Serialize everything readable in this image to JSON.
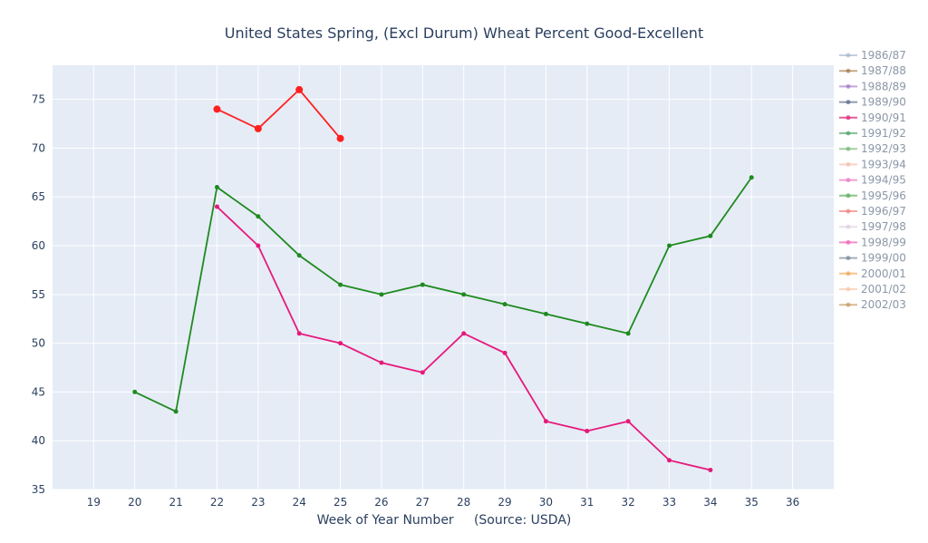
{
  "chart_data": {
    "type": "line",
    "title": "United States Spring, (Excl Durum) Wheat Percent Good-Excellent",
    "xlabel": "Week of Year Number     (Source: USDA)",
    "ylabel": "",
    "xlim": [
      18,
      37
    ],
    "ylim": [
      35,
      78.5
    ],
    "x_ticks": [
      19,
      20,
      21,
      22,
      23,
      24,
      25,
      26,
      27,
      28,
      29,
      30,
      31,
      32,
      33,
      34,
      35,
      36
    ],
    "y_ticks": [
      35,
      40,
      45,
      50,
      55,
      60,
      65,
      70,
      75
    ],
    "grid": true,
    "legend_position": "right",
    "series": [
      {
        "name": "1986/87",
        "color": "#9cb0c8",
        "opacity": 0.6,
        "x": [],
        "y": []
      },
      {
        "name": "1987/88",
        "color": "#a0703c",
        "opacity": 0.6,
        "x": [],
        "y": []
      },
      {
        "name": "1988/89",
        "color": "#9a6bbf",
        "opacity": 0.6,
        "x": [],
        "y": []
      },
      {
        "name": "1989/90",
        "color": "#4a5a7a",
        "opacity": 0.6,
        "x": [],
        "y": []
      },
      {
        "name": "1990/91",
        "color": "#e0337f",
        "opacity": 0.8,
        "x": [],
        "y": []
      },
      {
        "name": "1991/92",
        "color": "#3a9a5a",
        "opacity": 0.6,
        "x": [],
        "y": []
      },
      {
        "name": "1992/93",
        "color": "#6bb06b",
        "opacity": 0.6,
        "x": [],
        "y": []
      },
      {
        "name": "1993/94",
        "color": "#f2b5a0",
        "opacity": 0.6,
        "x": [],
        "y": []
      },
      {
        "name": "1994/95",
        "color": "#e87ac0",
        "opacity": 0.7,
        "x": [],
        "y": []
      },
      {
        "name": "1995/96",
        "color": "#5aaa5a",
        "opacity": 0.7,
        "x": [],
        "y": []
      },
      {
        "name": "1996/97",
        "color": "#f08080",
        "opacity": 0.7,
        "x": [],
        "y": []
      },
      {
        "name": "1997/98",
        "color": "#dcc8dc",
        "opacity": 0.6,
        "x": [],
        "y": []
      },
      {
        "name": "1998/99",
        "color": "#f060b0",
        "opacity": 0.7,
        "x": [],
        "y": []
      },
      {
        "name": "1999/00",
        "color": "#6a7a8a",
        "opacity": 0.6,
        "x": [],
        "y": []
      },
      {
        "name": "2000/01",
        "color": "#f0a040",
        "opacity": 0.6,
        "x": [],
        "y": []
      },
      {
        "name": "2001/02",
        "color": "#f5c0a0",
        "opacity": 0.6,
        "x": [],
        "y": []
      },
      {
        "name": "2002/03",
        "color": "#c09050",
        "opacity": 0.6,
        "x": [],
        "y": []
      },
      {
        "color": "#e6197b",
        "opacity": 1,
        "x": [
          22,
          23,
          24,
          25,
          26,
          27,
          28,
          29,
          30,
          31,
          32,
          33,
          34
        ],
        "y": [
          64,
          60,
          51,
          50,
          48,
          47,
          51,
          49,
          42,
          41,
          42,
          38,
          37
        ]
      },
      {
        "color": "#1f8a1f",
        "opacity": 1,
        "x": [
          20,
          21,
          22,
          23,
          24,
          25,
          26,
          27,
          28,
          29,
          30,
          31,
          32,
          33,
          34,
          35
        ],
        "y": [
          45,
          43,
          66,
          63,
          59,
          56,
          55,
          56,
          55,
          54,
          53,
          52,
          51,
          60,
          61,
          67
        ]
      },
      {
        "color": "#ff1f1f",
        "opacity": 1,
        "big_markers": true,
        "x": [
          22,
          23,
          24,
          25
        ],
        "y": [
          74,
          72,
          76,
          71
        ]
      }
    ]
  }
}
